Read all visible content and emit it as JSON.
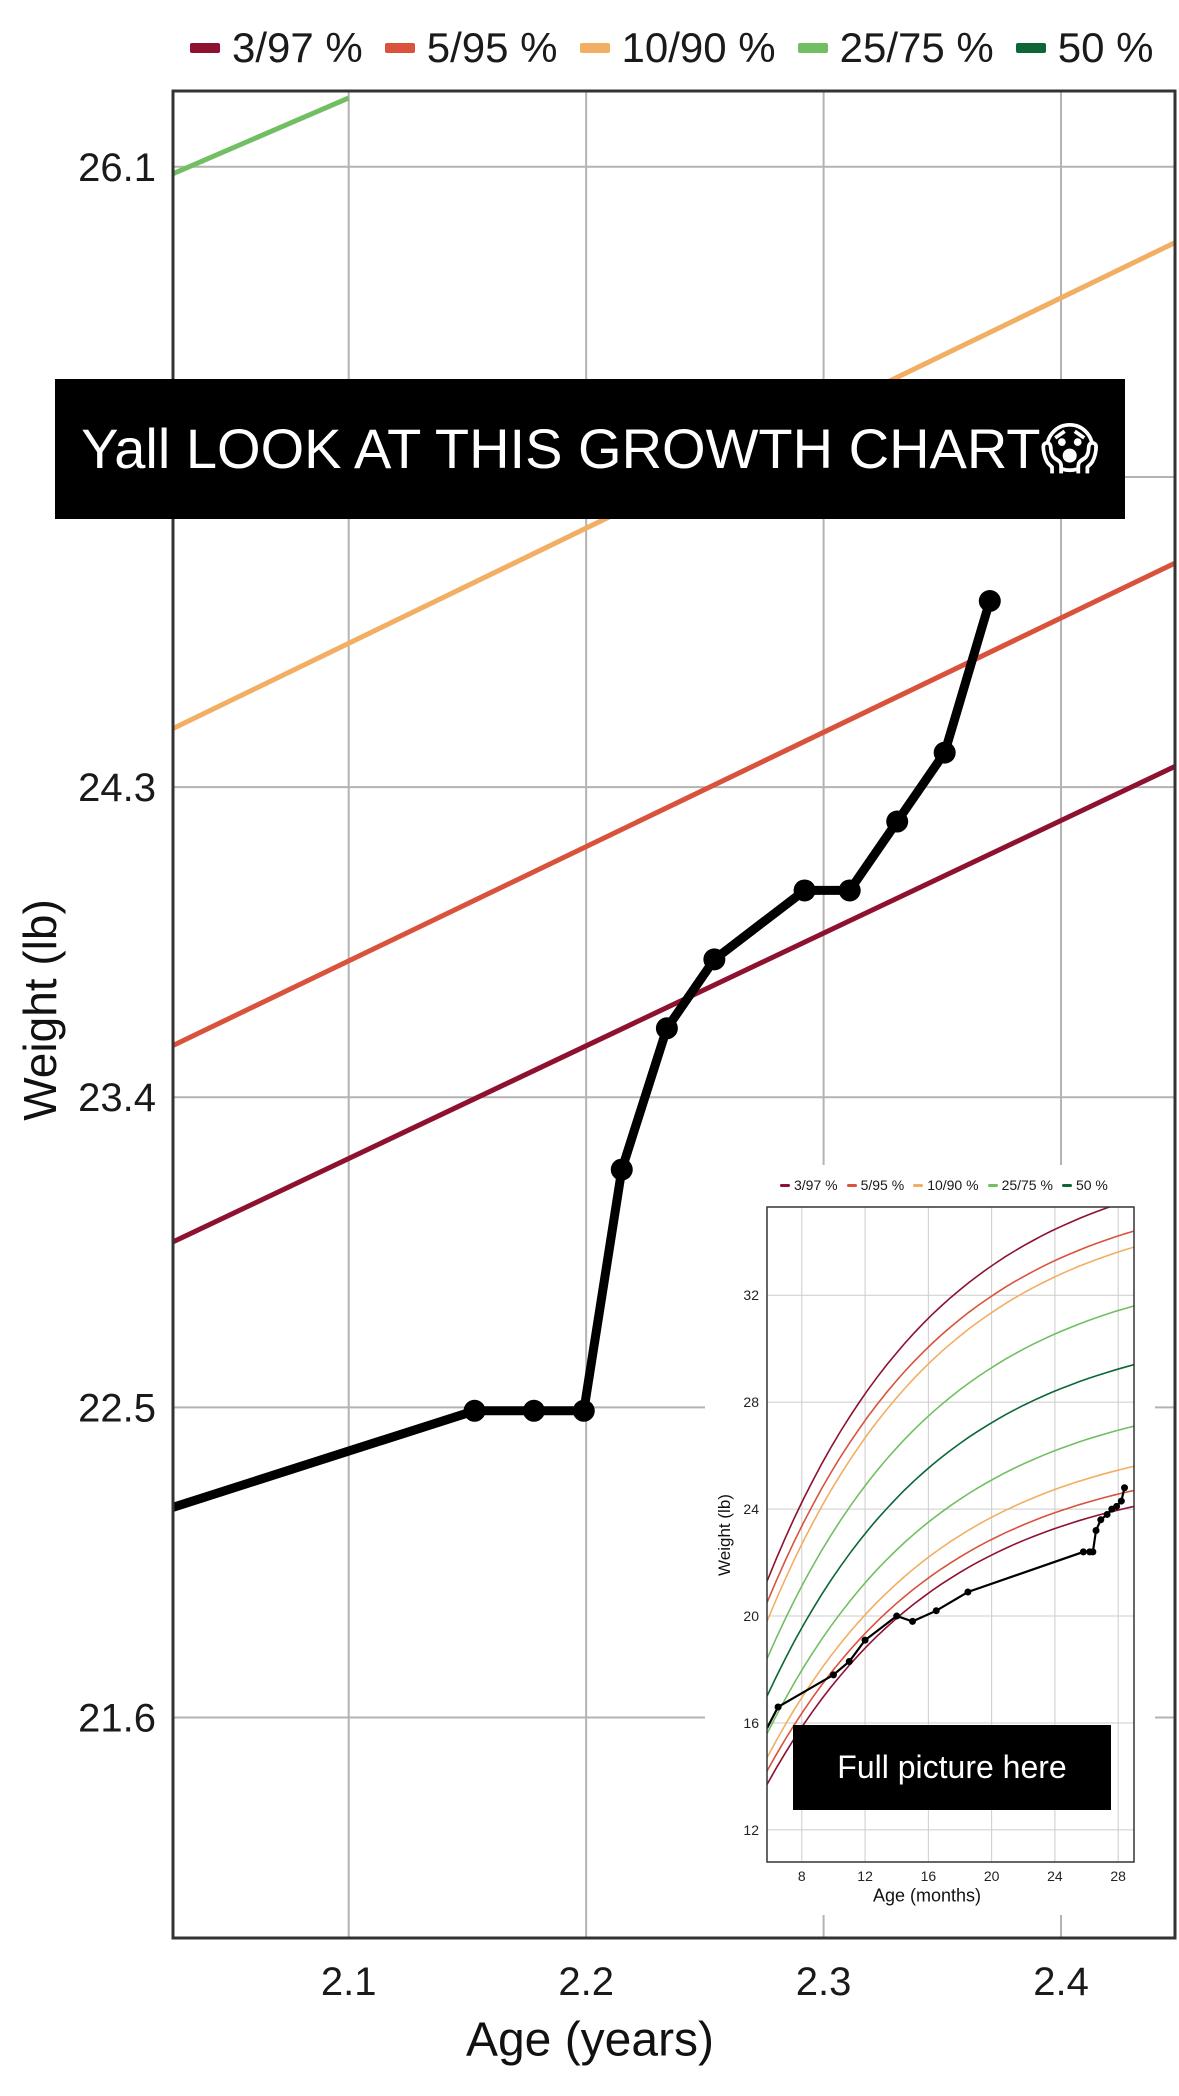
{
  "chart_data": [
    {
      "type": "line",
      "title": "",
      "xlabel": "Age (years)",
      "ylabel": "Weight (lb)",
      "xlim": [
        2.026,
        2.448
      ],
      "ylim": [
        20.96,
        26.32
      ],
      "xticks": [
        2.1,
        2.2,
        2.3,
        2.4
      ],
      "xtick_labels": [
        "2.1",
        "2.2",
        "2.3",
        "2.4"
      ],
      "yticks": [
        21.6,
        22.5,
        23.4,
        24.3,
        26.1
      ],
      "ytick_labels": [
        "21.6",
        "22.5",
        "23.4",
        "24.3",
        "26.1"
      ],
      "hgrid": [
        21.6,
        22.5,
        23.4,
        24.3,
        25.2,
        26.1
      ],
      "grid": true,
      "legend": "top",
      "percentile_lines": [
        {
          "name": "3/97 %",
          "color": "#8e1130",
          "points": [
            [
              2.026,
              22.98
            ],
            [
              2.448,
              24.36
            ]
          ]
        },
        {
          "name": "5/95 %",
          "color": "#d9533c",
          "points": [
            [
              2.026,
              23.55
            ],
            [
              2.448,
              24.95
            ]
          ]
        },
        {
          "name": "10/90 %",
          "color": "#f2ae62",
          "points": [
            [
              2.026,
              24.47
            ],
            [
              2.448,
              25.88
            ]
          ]
        },
        {
          "name": "25/75 %",
          "color": "#72bf63",
          "points": [
            [
              2.026,
              26.08
            ],
            [
              2.1,
              26.3
            ]
          ]
        }
      ],
      "legend_entries": [
        {
          "name": "3/97 %",
          "color": "#8e1130"
        },
        {
          "name": "5/95 %",
          "color": "#d9533c"
        },
        {
          "name": "10/90 %",
          "color": "#f2ae62"
        },
        {
          "name": "25/75 %",
          "color": "#72bf63"
        },
        {
          "name": "50 %",
          "color": "#0d6636"
        }
      ],
      "series": [
        {
          "color": "#000000",
          "x": [
            2.026,
            2.153,
            2.178,
            2.199,
            2.215,
            2.234,
            2.254,
            2.292,
            2.311,
            2.331,
            2.351,
            2.37
          ],
          "y": [
            22.21,
            22.49,
            22.49,
            22.49,
            23.19,
            23.6,
            23.8,
            24.0,
            24.0,
            24.2,
            24.4,
            24.84
          ],
          "markers": [
            false,
            true,
            true,
            true,
            true,
            true,
            true,
            true,
            true,
            true,
            true,
            true
          ]
        }
      ]
    },
    {
      "type": "line",
      "title": "",
      "xlabel": "Age (months)",
      "ylabel": "Weight (lb)",
      "xlim": [
        5.8,
        29.0
      ],
      "ylim": [
        10.8,
        35.3
      ],
      "xticks": [
        8,
        12,
        16,
        20,
        24,
        28
      ],
      "xtick_labels": [
        "8",
        "12",
        "16",
        "20",
        "24",
        "28"
      ],
      "yticks": [
        12,
        16,
        20,
        24,
        28,
        32
      ],
      "ytick_labels": [
        "12",
        "16",
        "20",
        "24",
        "28",
        "32"
      ],
      "grid": true,
      "legend": "top",
      "legend_entries": [
        {
          "name": "3/97 %",
          "color": "#8e1130"
        },
        {
          "name": "5/95 %",
          "color": "#d9533c"
        },
        {
          "name": "10/90 %",
          "color": "#f2ae62"
        },
        {
          "name": "25/75 %",
          "color": "#72bf63"
        },
        {
          "name": "50 %",
          "color": "#0d6636"
        }
      ],
      "percentile_curves": [
        {
          "name": "97 %",
          "color": "#8e1130",
          "start": 21.3,
          "end": 35.6
        },
        {
          "name": "95 %",
          "color": "#d9533c",
          "start": 20.5,
          "end": 34.4
        },
        {
          "name": "90 %",
          "color": "#f2ae62",
          "start": 19.8,
          "end": 33.8
        },
        {
          "name": "75 %",
          "color": "#72bf63",
          "start": 18.4,
          "end": 31.6
        },
        {
          "name": "50 %",
          "color": "#0d6636",
          "start": 17.0,
          "end": 29.4
        },
        {
          "name": "25 %",
          "color": "#72bf63",
          "start": 15.6,
          "end": 27.1
        },
        {
          "name": "10 %",
          "color": "#f2ae62",
          "start": 14.7,
          "end": 25.6
        },
        {
          "name": "5 %",
          "color": "#d9533c",
          "start": 14.2,
          "end": 24.7
        },
        {
          "name": "3 %",
          "color": "#8e1130",
          "start": 13.7,
          "end": 24.1
        }
      ],
      "series": [
        {
          "color": "#000000",
          "x": [
            5.8,
            6.5,
            10.0,
            11.0,
            12.0,
            14.0,
            15.0,
            16.5,
            18.5,
            25.8,
            26.2,
            26.4,
            26.6,
            26.9,
            27.3,
            27.6,
            27.9,
            28.2,
            28.4
          ],
          "y": [
            15.8,
            16.6,
            17.8,
            18.3,
            19.1,
            20.0,
            19.8,
            20.2,
            20.9,
            22.4,
            22.4,
            22.4,
            23.2,
            23.6,
            23.8,
            24.0,
            24.1,
            24.3,
            24.8
          ]
        }
      ]
    }
  ],
  "caption": "Yall LOOK AT THIS GROWTH CHART😱",
  "inset_caption": "Full picture here"
}
